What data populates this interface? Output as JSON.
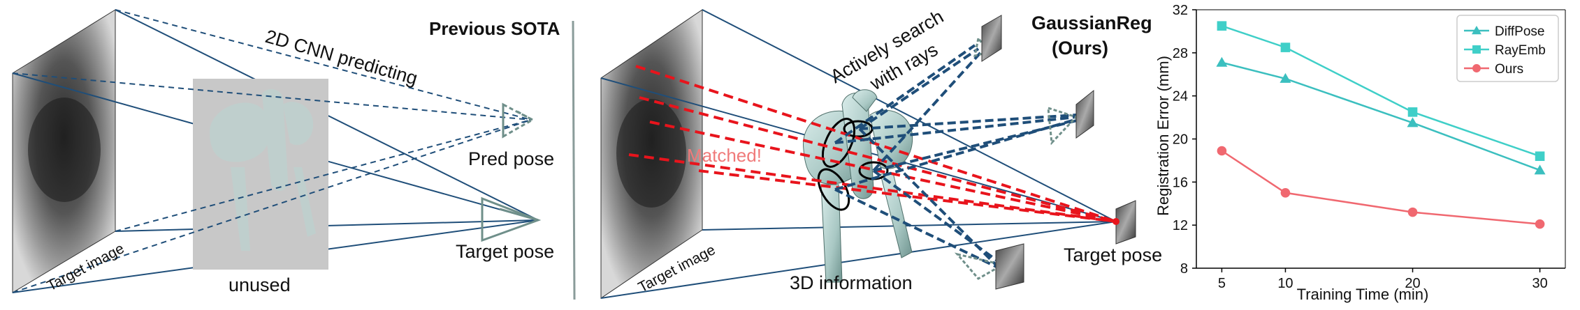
{
  "left_panel": {
    "title": "Previous SOTA",
    "cnn_label": "2D CNN  predicting",
    "target_image_label": "Target image",
    "unused_label": "unused",
    "pred_pose_label": "Pred pose",
    "target_pose_label": "Target pose"
  },
  "middle_panel": {
    "title_line1": "GaussianReg",
    "title_line2": "(Ours)",
    "search_line1": "Actively search",
    "search_line2": "with rays",
    "matched_label": "Matched!",
    "target_image_label": "Target image",
    "info_label": "3D information",
    "target_pose_label": "Target pose"
  },
  "colors": {
    "dark_blue": "#1f4e79",
    "red_dash": "#e8141c",
    "matched_text": "#f07a7a",
    "gray_box": "#c8c8c8",
    "diffpose": "#3bbfbf",
    "rayemb": "#3fcfc8",
    "ours": "#f06870"
  },
  "chart_data": {
    "type": "line",
    "xlabel": "Training Time (min)",
    "ylabel": "Registration Error (mm)",
    "x": [
      5,
      10,
      20,
      30
    ],
    "x_ticks": [
      "5",
      "10",
      "20",
      "30"
    ],
    "ylim": [
      8,
      32
    ],
    "y_ticks": [
      "8",
      "12",
      "16",
      "20",
      "24",
      "28",
      "32"
    ],
    "grid": false,
    "legend_position": "top-right",
    "series": [
      {
        "name": "DiffPose",
        "marker": "triangle",
        "color": "#3bbfbf",
        "values": [
          27.1,
          25.6,
          21.5,
          17.1
        ]
      },
      {
        "name": "RayEmb",
        "marker": "square",
        "color": "#3fcfc8",
        "values": [
          30.5,
          28.5,
          22.5,
          18.4
        ]
      },
      {
        "name": "Ours",
        "marker": "circle",
        "color": "#f06870",
        "values": [
          18.9,
          15.0,
          13.2,
          12.1
        ]
      }
    ]
  }
}
